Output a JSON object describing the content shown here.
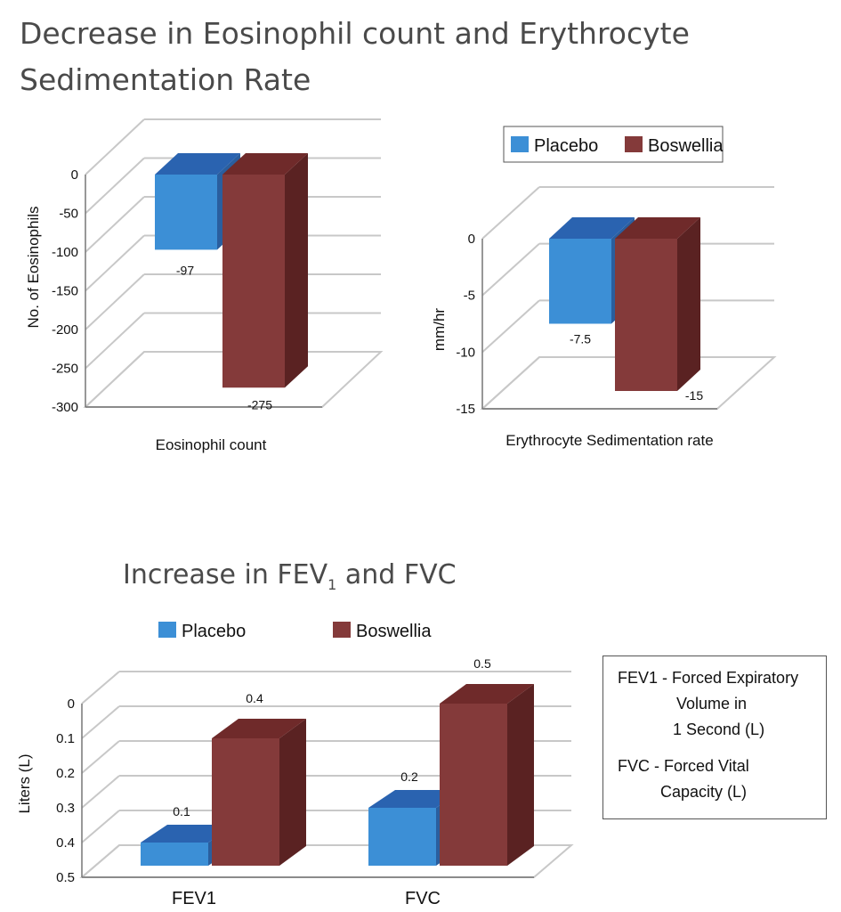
{
  "titles": {
    "top_line1": "Decrease in Eosinophil count and Erythrocyte",
    "top_line2": "Sedimentation Rate",
    "bottom_prefix": "Increase in FEV",
    "bottom_sub": "1",
    "bottom_suffix": " and FVC"
  },
  "legend": {
    "placebo": "Placebo",
    "boswellia": "Boswellia"
  },
  "colors": {
    "placebo_front": "#3c8fd6",
    "placebo_top": "#2a63b0",
    "placebo_side": "#2a5e9e",
    "boswellia_front": "#843a3a",
    "boswellia_top": "#6f2a2a",
    "boswellia_side": "#5a2222",
    "grid": "#c8c8c8"
  },
  "note": {
    "lines": [
      "FEV1 - Forced Expiratory",
      "Volume in",
      "1 Second (L)",
      "FVC - Forced Vital",
      "Capacity (L)"
    ]
  },
  "chart_data": [
    {
      "type": "bar",
      "title": "",
      "xlabel": "Eosinophil count",
      "ylabel": "No. of Eosinophils",
      "ylim": [
        -300,
        0
      ],
      "yticks": [
        "0",
        "-50",
        "-100",
        "-150",
        "-200",
        "-250",
        "-300"
      ],
      "grid": true,
      "legend": "none",
      "series": [
        {
          "name": "Placebo",
          "values": [
            -97
          ],
          "labels": [
            "-97"
          ]
        },
        {
          "name": "Boswellia",
          "values": [
            -275
          ],
          "labels": [
            "-275"
          ]
        }
      ]
    },
    {
      "type": "bar",
      "title": "",
      "xlabel": "Erythrocyte Sedimentation rate",
      "ylabel": "mm/hr",
      "ylim": [
        -15,
        0
      ],
      "yticks": [
        "0",
        "-5",
        "-10",
        "-15"
      ],
      "grid": true,
      "legend": "top",
      "series": [
        {
          "name": "Placebo",
          "values": [
            -7.5
          ],
          "labels": [
            "-7.5"
          ]
        },
        {
          "name": "Boswellia",
          "values": [
            -15
          ],
          "labels": [
            "-15"
          ]
        }
      ]
    },
    {
      "type": "bar",
      "title": "Increase in FEV1 and FVC",
      "xlabel": "",
      "ylabel": "Liters (L)",
      "categories": [
        "FEV1",
        "FVC"
      ],
      "ylim": [
        0,
        0.5
      ],
      "yticks": [
        "0",
        "0.1",
        "0.2",
        "0.3",
        "0.4",
        "0.5"
      ],
      "grid": true,
      "legend": "top",
      "series": [
        {
          "name": "Placebo",
          "values": [
            0.1,
            0.2
          ],
          "labels": [
            "0.1",
            "0.2"
          ]
        },
        {
          "name": "Boswellia",
          "values": [
            0.4,
            0.5
          ],
          "labels": [
            "0.4",
            "0.5"
          ]
        }
      ]
    }
  ]
}
